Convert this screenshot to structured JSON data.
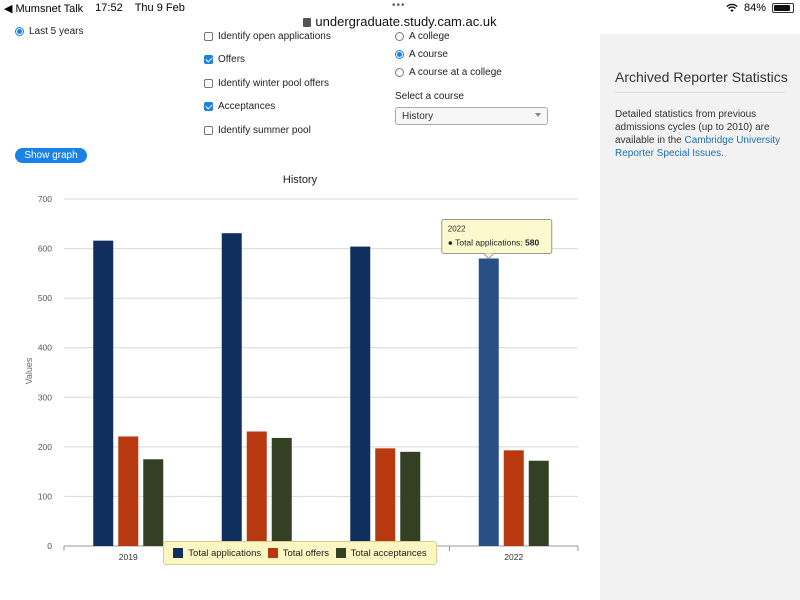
{
  "statusbar": {
    "back_app": "◀ Mumsnet Talk",
    "time": "17:52",
    "date": "Thu 9 Feb",
    "battery": "84%"
  },
  "url": "undergraduate.study.cam.ac.uk",
  "filters": {
    "period_label": "Last 5 years",
    "checkboxes": [
      {
        "label": "Identify open applications",
        "checked": false
      },
      {
        "label": "Offers",
        "checked": true
      },
      {
        "label": "Identify winter pool offers",
        "checked": false
      },
      {
        "label": "Acceptances",
        "checked": true
      },
      {
        "label": "Identify summer pool",
        "checked": false
      }
    ],
    "radios": [
      {
        "label": "A college",
        "checked": false
      },
      {
        "label": "A course",
        "checked": true
      },
      {
        "label": "A course at a college",
        "checked": false
      }
    ],
    "select_label": "Select a course",
    "select_value": "History",
    "show_graph": "Show graph"
  },
  "sidebar": {
    "title": "Archived Reporter Statistics",
    "text_before": "Detailed statistics from previous admissions cycles (up to 2010) are available in the ",
    "link": "Cambridge University Reporter Special Issues",
    "text_after": "."
  },
  "chart_data": {
    "type": "bar",
    "title": "History",
    "ylabel": "Values",
    "xlabel": "",
    "ylim": [
      0,
      700
    ],
    "yticks": [
      0,
      100,
      200,
      300,
      400,
      500,
      600,
      700
    ],
    "categories": [
      "2019",
      "2020",
      "2021",
      "2022"
    ],
    "series": [
      {
        "name": "Total applications",
        "color": "#112f5e",
        "values": [
          616,
          631,
          604,
          580
        ]
      },
      {
        "name": "Total offers",
        "color": "#b8390f",
        "values": [
          221,
          231,
          197,
          193
        ]
      },
      {
        "name": "Total acceptances",
        "color": "#334024",
        "values": [
          175,
          218,
          190,
          172
        ]
      }
    ],
    "highlight_color": "#2a4f85",
    "tooltip": {
      "title": "2022",
      "label": "Total applications:",
      "value": "580"
    }
  }
}
